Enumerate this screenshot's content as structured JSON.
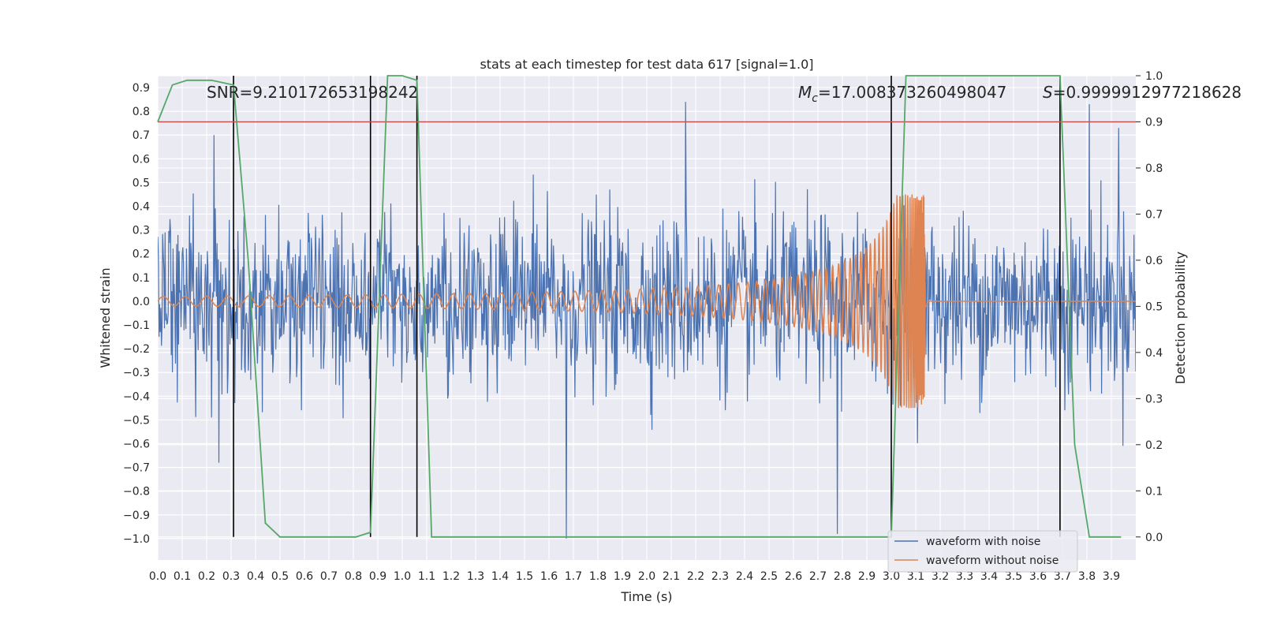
{
  "chart_data": {
    "type": "line",
    "title": "stats at each timestep for test data 617 [signal=1.0]",
    "xlabel": "Time (s)",
    "ylabel": "Whitened strain",
    "y2label": "Detection probability",
    "xlim": [
      0.0,
      4.0
    ],
    "ylim": [
      -1.09,
      0.95
    ],
    "y2lim": [
      -0.05,
      1.0
    ],
    "x_ticks": [
      0.0,
      0.1,
      0.2,
      0.3,
      0.4,
      0.5,
      0.6,
      0.7,
      0.8,
      0.9,
      1.0,
      1.1,
      1.2,
      1.3,
      1.4,
      1.5,
      1.6,
      1.7,
      1.8,
      1.9,
      2.0,
      2.1,
      2.2,
      2.3,
      2.4,
      2.5,
      2.6,
      2.7,
      2.8,
      2.9,
      3.0,
      3.1,
      3.2,
      3.3,
      3.4,
      3.5,
      3.6,
      3.7,
      3.8,
      3.9
    ],
    "x_tick_labels": [
      "0.0",
      "0.1",
      "0.2",
      "0.3",
      "0.4",
      "0.5",
      "0.6",
      "0.7",
      "0.8",
      "0.9",
      "1.0",
      "1.1",
      "1.2",
      "1.3",
      "1.4",
      "1.5",
      "1.6",
      "1.7",
      "1.8",
      "1.9",
      "2.0",
      "2.1",
      "2.2",
      "2.3",
      "2.4",
      "2.5",
      "2.6",
      "2.7",
      "2.8",
      "2.9",
      "3.0",
      "3.1",
      "3.2",
      "3.3",
      "3.4",
      "3.5",
      "3.6",
      "3.7",
      "3.8",
      "3.9"
    ],
    "y_ticks": [
      0.9,
      0.8,
      0.7,
      0.6,
      0.5,
      0.4,
      0.3,
      0.2,
      0.1,
      0.0,
      -0.1,
      -0.2,
      -0.3,
      -0.4,
      -0.5,
      -0.6,
      -0.7,
      -0.8,
      -0.9,
      -1.0
    ],
    "y_tick_labels": [
      "0.9",
      "0.8",
      "0.7",
      "0.6",
      "0.5",
      "0.4",
      "0.3",
      "0.2",
      "0.1",
      "0.0",
      "−0.1",
      "−0.2",
      "−0.3",
      "−0.4",
      "−0.5",
      "−0.6",
      "−0.7",
      "−0.8",
      "−0.9",
      "−1.0"
    ],
    "y2_ticks": [
      1.0,
      0.9,
      0.8,
      0.7,
      0.6,
      0.5,
      0.4,
      0.3,
      0.2,
      0.1,
      0.0
    ],
    "y2_tick_labels": [
      "1.0",
      "0.9",
      "0.8",
      "0.7",
      "0.6",
      "0.5",
      "0.4",
      "0.3",
      "0.2",
      "0.1",
      "0.0"
    ],
    "grid": true,
    "legend_position": "bottom-right",
    "series": [
      {
        "name": "waveform with noise",
        "color": "#4c72b0",
        "axis": "left",
        "description_values": {
          "noise_amplitude_typical": 0.25,
          "extremes": [
            [
              0.23,
              0.7
            ],
            [
              0.25,
              -0.68
            ],
            [
              1.67,
              -1.0
            ],
            [
              2.16,
              0.84
            ],
            [
              2.78,
              -0.98
            ],
            [
              3.81,
              0.83
            ],
            [
              3.93,
              0.73
            ]
          ]
        }
      },
      {
        "name": "waveform without noise",
        "color": "#dd8452",
        "axis": "left",
        "chirp": {
          "start_amplitude": 0.02,
          "peak_time": 3.14,
          "peak_amplitude": 0.45,
          "end_time": 3.15
        }
      },
      {
        "color": "#55a868",
        "axis": "right",
        "x": [
          0.0,
          0.06,
          0.12,
          0.22,
          0.31,
          0.37,
          0.44,
          0.5,
          0.56,
          0.62,
          0.81,
          0.87,
          0.94,
          1.0,
          1.06,
          1.12,
          1.19,
          1.25,
          3.0,
          3.06,
          3.13,
          3.69,
          3.75,
          3.81,
          3.88,
          3.94
        ],
        "y": [
          0.9,
          0.98,
          0.99,
          0.99,
          0.98,
          0.6,
          0.03,
          0.0,
          0.0,
          0.0,
          0.0,
          0.01,
          1.0,
          1.0,
          0.99,
          0.0,
          0.0,
          0.0,
          0.0,
          1.0,
          1.0,
          1.0,
          0.2,
          0.0,
          0.0,
          0.0
        ]
      }
    ],
    "threshold_line": {
      "value": 0.9,
      "axis": "right",
      "color": "#c44e52"
    },
    "detection_lines": {
      "color": "#000000",
      "x": [
        0.31,
        0.87,
        1.06,
        3.0,
        3.69
      ]
    },
    "annotations": [
      {
        "text": "SNR=9.210172653198242"
      },
      {
        "text": "$M_c$=17.008373260498047",
        "display_symbol": "M",
        "display_subscript": "c",
        "display_rest": "=17.008373260498047"
      },
      {
        "text": "S=0.9999912977218628",
        "display_symbol": "S",
        "display_rest": "=0.9999912977218628"
      }
    ]
  }
}
